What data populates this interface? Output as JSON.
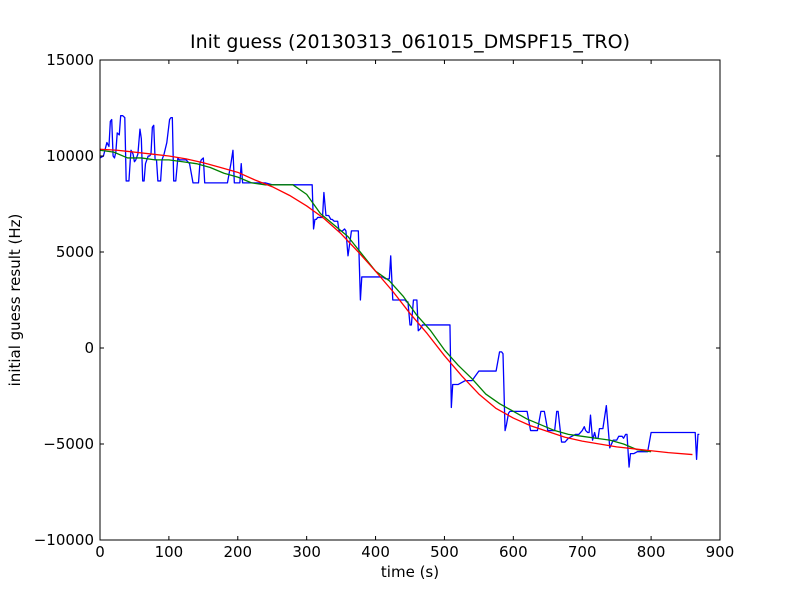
{
  "chart_data": {
    "type": "line",
    "title": "Init guess (20130313_061015_DMSPF15_TRO)",
    "xlabel": "time (s)",
    "ylabel": "initial guess result (Hz)",
    "xlim": [
      0,
      900
    ],
    "ylim": [
      -10000,
      15000
    ],
    "xticks": [
      0,
      100,
      200,
      300,
      400,
      500,
      600,
      700,
      800,
      900
    ],
    "yticks": [
      -10000,
      -5000,
      0,
      5000,
      10000,
      15000
    ],
    "xtick_labels": [
      "0",
      "100",
      "200",
      "300",
      "400",
      "500",
      "600",
      "700",
      "800",
      "900"
    ],
    "ytick_labels": [
      "−10000",
      "−5000",
      "0",
      "5000",
      "10000",
      "15000"
    ],
    "grid": false,
    "legend": "none",
    "series": [
      {
        "color": "#0000ff",
        "x": [
          0,
          5,
          10,
          13,
          15,
          17,
          19,
          21,
          23,
          25,
          28,
          30,
          33,
          36,
          38,
          40,
          42,
          44,
          45,
          48,
          50,
          52,
          55,
          58,
          60,
          62,
          64,
          66,
          68,
          70,
          72,
          74,
          76,
          78,
          80,
          82,
          84,
          86,
          88,
          90,
          93,
          95,
          97,
          99,
          101,
          103,
          105,
          107,
          110,
          113,
          115,
          117,
          120,
          125,
          130,
          135,
          140,
          143,
          145,
          147,
          150,
          152,
          155,
          157,
          160,
          162,
          165,
          170,
          175,
          180,
          185,
          190,
          193,
          195,
          197,
          200,
          203,
          205,
          207,
          210,
          215,
          220,
          222,
          224,
          226,
          228,
          230,
          240,
          250,
          260,
          270,
          280,
          290,
          300,
          305,
          308,
          310,
          312,
          314,
          316,
          318,
          320,
          323,
          325,
          328,
          330,
          332,
          335,
          337,
          340,
          342,
          345,
          347,
          350,
          352,
          355,
          357,
          360,
          365,
          368,
          370,
          372,
          375,
          378,
          380,
          382,
          385,
          388,
          390,
          392,
          395,
          398,
          400,
          403,
          405,
          410,
          415,
          418,
          420,
          422,
          425,
          428,
          430,
          433,
          436,
          440,
          443,
          445,
          447,
          450,
          452,
          455,
          457,
          460,
          462,
          465,
          468,
          470,
          475,
          480,
          485,
          490,
          495,
          500,
          505,
          508,
          510,
          512,
          515,
          520,
          530,
          540,
          550,
          555,
          560,
          565,
          570,
          575,
          580,
          583,
          585,
          588,
          590,
          593,
          595,
          597,
          600,
          603,
          605,
          610,
          615,
          620,
          625,
          628,
          630,
          633,
          635,
          640,
          645,
          650,
          653,
          655,
          658,
          660,
          663,
          665,
          670,
          675,
          680,
          685,
          690,
          695,
          700,
          703,
          705,
          708,
          710,
          712,
          715,
          718,
          720,
          723,
          725,
          727,
          730,
          735,
          740,
          745,
          750,
          753,
          755,
          758,
          760,
          763,
          765,
          768,
          770,
          775,
          780,
          785,
          788,
          790,
          795,
          800,
          805,
          810,
          820,
          830,
          840,
          850,
          860,
          862,
          864,
          866,
          868,
          870
        ],
        "y": [
          9900,
          10000,
          10700,
          10500,
          11800,
          11900,
          10000,
          9900,
          10200,
          11200,
          11100,
          12100,
          12100,
          12000,
          8700,
          8700,
          8700,
          9800,
          10300,
          10100,
          9700,
          9800,
          10100,
          11400,
          10900,
          8700,
          8700,
          9600,
          9800,
          10000,
          10000,
          10100,
          11500,
          11600,
          9800,
          9800,
          8700,
          8700,
          8700,
          9800,
          10100,
          10400,
          10700,
          11300,
          11900,
          12000,
          12000,
          8700,
          8700,
          9900,
          9800,
          9800,
          9800,
          9800,
          9600,
          8600,
          8600,
          8600,
          9600,
          9800,
          9900,
          8600,
          8600,
          8600,
          8600,
          8600,
          8600,
          8600,
          8600,
          8600,
          8600,
          9600,
          10300,
          8600,
          8600,
          8600,
          8600,
          9600,
          8600,
          8600,
          8600,
          8600,
          8600,
          8600,
          8600,
          8600,
          8600,
          8600,
          8500,
          8500,
          8500,
          8500,
          8500,
          8500,
          8500,
          8500,
          6200,
          6700,
          6700,
          6800,
          6800,
          6800,
          6800,
          8100,
          6900,
          6900,
          6900,
          6700,
          6700,
          6600,
          6600,
          6600,
          6100,
          6100,
          6100,
          6200,
          6100,
          4800,
          6100,
          6100,
          6100,
          6100,
          6100,
          2500,
          3700,
          3700,
          3700,
          3700,
          3700,
          3700,
          3700,
          3700,
          3700,
          3700,
          3700,
          3700,
          3600,
          3600,
          3600,
          4800,
          2500,
          2500,
          2500,
          2500,
          2500,
          2500,
          2500,
          2400,
          2400,
          1200,
          1200,
          2500,
          2500,
          2500,
          900,
          1000,
          1200,
          1200,
          1200,
          1200,
          1200,
          1200,
          1200,
          1200,
          1200,
          1200,
          -3100,
          -1900,
          -1900,
          -1900,
          -1700,
          -1700,
          -1200,
          -1200,
          -1200,
          -1200,
          -1200,
          -1200,
          -200,
          -200,
          -300,
          -4300,
          -4000,
          -3400,
          -3300,
          -3300,
          -3300,
          -3300,
          -3300,
          -3300,
          -3300,
          -3300,
          -4300,
          -4300,
          -4300,
          -4300,
          -4300,
          -3300,
          -3300,
          -4300,
          -4300,
          -4300,
          -4300,
          -4300,
          -3300,
          -3300,
          -4900,
          -4900,
          -4700,
          -4600,
          -4500,
          -4500,
          -4300,
          -4100,
          -4300,
          -4400,
          -4400,
          -3500,
          -4800,
          -4400,
          -4700,
          -4700,
          -4200,
          -4200,
          -4200,
          -3000,
          -5200,
          -4800,
          -4800,
          -4600,
          -4600,
          -4600,
          -4700,
          -4500,
          -4500,
          -6200,
          -5500,
          -5500,
          -5400,
          -5400,
          -5400,
          -5400,
          -5400,
          -4400,
          -4400,
          -4400,
          -4400,
          -4400,
          -4400,
          -4400,
          -4400,
          -4400,
          -4400,
          -5800,
          -4500,
          -4500
        ]
      },
      {
        "color": "#008000",
        "x": [
          0,
          20,
          40,
          60,
          80,
          100,
          120,
          140,
          160,
          180,
          200,
          220,
          240,
          260,
          280,
          300,
          320,
          340,
          360,
          380,
          400,
          420,
          440,
          460,
          480,
          500,
          520,
          540,
          560,
          580,
          600,
          620,
          640,
          660,
          680,
          700,
          720,
          740,
          760,
          780,
          800
        ],
        "y": [
          10300,
          10200,
          9900,
          9900,
          9800,
          9800,
          9700,
          9600,
          9400,
          9100,
          8900,
          8600,
          8500,
          8500,
          8500,
          8000,
          7000,
          6400,
          5800,
          4900,
          4000,
          3500,
          2700,
          1700,
          900,
          -100,
          -900,
          -1600,
          -2400,
          -2900,
          -3300,
          -3700,
          -4000,
          -4300,
          -4500,
          -4600,
          -4700,
          -4800,
          -5000,
          -5300,
          -5400
        ]
      },
      {
        "color": "#ff0000",
        "x": [
          0,
          25,
          50,
          75,
          100,
          125,
          150,
          175,
          200,
          225,
          250,
          275,
          300,
          325,
          350,
          375,
          400,
          425,
          450,
          475,
          500,
          525,
          550,
          575,
          600,
          625,
          650,
          675,
          700,
          725,
          750,
          775,
          800,
          825,
          860
        ],
        "y": [
          10350,
          10300,
          10200,
          10100,
          10000,
          9850,
          9650,
          9400,
          9150,
          8750,
          8400,
          7950,
          7400,
          6750,
          5950,
          5000,
          4000,
          2950,
          1800,
          750,
          -400,
          -1450,
          -2400,
          -3150,
          -3650,
          -4050,
          -4350,
          -4650,
          -4850,
          -5000,
          -5150,
          -5250,
          -5350,
          -5450,
          -5550
        ]
      }
    ]
  }
}
